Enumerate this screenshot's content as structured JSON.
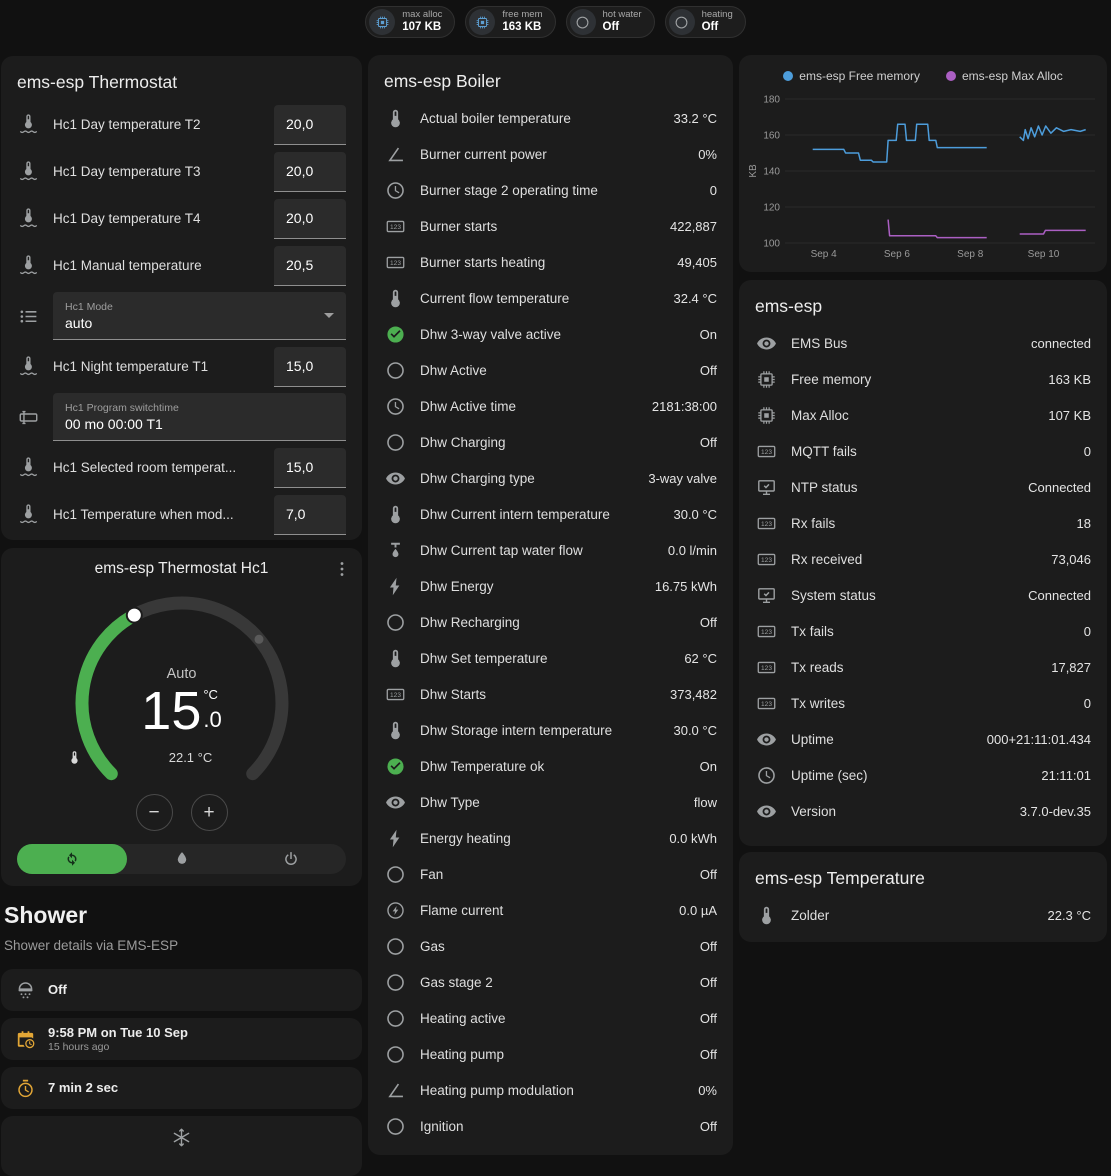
{
  "badges": [
    {
      "label": "max alloc",
      "value": "107 KB",
      "icon": "memory",
      "icon_color": "#5d9fd3"
    },
    {
      "label": "free mem",
      "value": "163 KB",
      "icon": "memory",
      "icon_color": "#5d9fd3"
    },
    {
      "label": "hot water",
      "value": "Off",
      "icon": "circle-outline",
      "icon_color": "#9da0a2"
    },
    {
      "label": "heating",
      "value": "Off",
      "icon": "circle-outline",
      "icon_color": "#9da0a2"
    }
  ],
  "thermostat_card": {
    "title": "ems-esp Thermostat",
    "rows": [
      {
        "type": "number",
        "icon": "thermometer-water",
        "label": "Hc1 Day temperature T2",
        "value": "20,0"
      },
      {
        "type": "number",
        "icon": "thermometer-water",
        "label": "Hc1 Day temperature T3",
        "value": "20,0"
      },
      {
        "type": "number",
        "icon": "thermometer-water",
        "label": "Hc1 Day temperature T4",
        "value": "20,0"
      },
      {
        "type": "number",
        "icon": "thermometer-water",
        "label": "Hc1 Manual temperature",
        "value": "20,5"
      },
      {
        "type": "select",
        "icon": "format-list",
        "label": "Hc1 Mode",
        "value": "auto"
      },
      {
        "type": "number",
        "icon": "thermometer-water",
        "label": "Hc1 Night temperature T1",
        "value": "15,0"
      },
      {
        "type": "text",
        "icon": "form-textbox",
        "label": "Hc1 Program switchtime",
        "value": "00 mo 00:00 T1"
      },
      {
        "type": "number",
        "icon": "thermometer-water",
        "label": "Hc1 Selected room temperat...",
        "value": "15,0"
      },
      {
        "type": "number",
        "icon": "thermometer-water",
        "label": "Hc1 Temperature when mod...",
        "value": "7,0"
      }
    ]
  },
  "hc1_card": {
    "title": "ems-esp Thermostat Hc1",
    "mode": "Auto",
    "temp_integer": "15",
    "temp_decimal": ".0",
    "temp_unit": "°C",
    "current_temperature": "22.1 °C",
    "decrease_label": "−",
    "increase_label": "+",
    "colors": {
      "arc_active": "#4caf50",
      "arc_inactive": "#383838",
      "handle": "#ffffff",
      "current_dot": "#5a5a5a",
      "active_mode_bg": "#4caf50"
    },
    "mode_buttons": [
      {
        "icon": "autorenew",
        "name": "auto-mode-button",
        "active": true
      },
      {
        "icon": "fire",
        "name": "heat-mode-button",
        "active": false
      },
      {
        "icon": "power",
        "name": "off-mode-button",
        "active": false
      }
    ]
  },
  "shower": {
    "title": "Shower",
    "subtitle": "Shower details via EMS-ESP",
    "rows": [
      {
        "icon": "shower",
        "icon_color": "#9da0a2",
        "text": "Off",
        "sub": ""
      },
      {
        "icon": "calendar-clock",
        "icon_color": "#e2a636",
        "text": "9:58 PM on Tue 10 Sep",
        "sub": "15 hours ago"
      },
      {
        "icon": "timer",
        "icon_color": "#e2a636",
        "text": "7 min 2 sec",
        "sub": ""
      },
      {
        "icon": "snowflake",
        "icon_color": "#9da0a2",
        "text": "",
        "sub": "",
        "center": true
      }
    ]
  },
  "boiler_card": {
    "title": "ems-esp Boiler",
    "rows": [
      {
        "icon": "thermometer",
        "label": "Actual boiler temperature",
        "value": "33.2 °C"
      },
      {
        "icon": "angle",
        "label": "Burner current power",
        "value": "0%"
      },
      {
        "icon": "clock",
        "label": "Burner stage 2 operating time",
        "value": "0"
      },
      {
        "icon": "counter",
        "label": "Burner starts",
        "value": "422,887"
      },
      {
        "icon": "counter",
        "label": "Burner starts heating",
        "value": "49,405"
      },
      {
        "icon": "thermometer",
        "label": "Current flow temperature",
        "value": "32.4 °C"
      },
      {
        "icon": "check-circle",
        "icon_color": "#4caf50",
        "label": "Dhw 3-way valve active",
        "value": "On"
      },
      {
        "icon": "circle-outline",
        "label": "Dhw Active",
        "value": "Off"
      },
      {
        "icon": "clock",
        "label": "Dhw Active time",
        "value": "2181:38:00"
      },
      {
        "icon": "circle-outline",
        "label": "Dhw Charging",
        "value": "Off"
      },
      {
        "icon": "eye",
        "label": "Dhw Charging type",
        "value": "3-way valve"
      },
      {
        "icon": "thermometer",
        "label": "Dhw Current intern temperature",
        "value": "30.0 °C"
      },
      {
        "icon": "water-pump",
        "label": "Dhw Current tap water flow",
        "value": "0.0 l/min"
      },
      {
        "icon": "flash",
        "label": "Dhw Energy",
        "value": "16.75 kWh"
      },
      {
        "icon": "circle-outline",
        "label": "Dhw Recharging",
        "value": "Off"
      },
      {
        "icon": "thermometer",
        "label": "Dhw Set temperature",
        "value": "62 °C"
      },
      {
        "icon": "counter",
        "label": "Dhw Starts",
        "value": "373,482"
      },
      {
        "icon": "thermometer",
        "label": "Dhw Storage intern temperature",
        "value": "30.0 °C"
      },
      {
        "icon": "check-circle",
        "icon_color": "#4caf50",
        "label": "Dhw Temperature ok",
        "value": "On"
      },
      {
        "icon": "eye",
        "label": "Dhw Type",
        "value": "flow"
      },
      {
        "icon": "flash",
        "label": "Energy heating",
        "value": "0.0 kWh"
      },
      {
        "icon": "circle-outline",
        "label": "Fan",
        "value": "Off"
      },
      {
        "icon": "flash-circle",
        "label": "Flame current",
        "value": "0.0 µA"
      },
      {
        "icon": "circle-outline",
        "label": "Gas",
        "value": "Off"
      },
      {
        "icon": "circle-outline",
        "label": "Gas stage 2",
        "value": "Off"
      },
      {
        "icon": "circle-outline",
        "label": "Heating active",
        "value": "Off"
      },
      {
        "icon": "circle-outline",
        "label": "Heating pump",
        "value": "Off"
      },
      {
        "icon": "angle",
        "label": "Heating pump modulation",
        "value": "0%"
      },
      {
        "icon": "circle-outline",
        "label": "Ignition",
        "value": "Off"
      }
    ]
  },
  "chart_card": {
    "legend": [
      {
        "label": "ems-esp Free memory",
        "color": "#4d9ddb"
      },
      {
        "label": "ems-esp Max Alloc",
        "color": "#ab5fc3"
      }
    ],
    "chart_data": {
      "type": "line",
      "title": "",
      "xlabel": "",
      "ylabel": "KB",
      "ylim": [
        100,
        180
      ],
      "yticks": [
        100,
        120,
        140,
        160,
        180
      ],
      "xlim": [
        3.0,
        11.35
      ],
      "xticks": [
        {
          "x": 4,
          "label": "Sep 4"
        },
        {
          "x": 6,
          "label": "Sep 6"
        },
        {
          "x": 8,
          "label": "Sep 8"
        },
        {
          "x": 10,
          "label": "Sep 10"
        }
      ],
      "grid": "horizontal",
      "legend_position": "top",
      "series": [
        {
          "name": "ems-esp Free memory",
          "color": "#4d9ddb",
          "unit": "KB",
          "segments": [
            [
              [
                3.7,
                152
              ],
              [
                4.55,
                152
              ],
              [
                4.6,
                150
              ],
              [
                4.95,
                150
              ],
              [
                5.0,
                146
              ],
              [
                5.3,
                146
              ],
              [
                5.35,
                145
              ],
              [
                5.72,
                145
              ],
              [
                5.76,
                157
              ],
              [
                5.98,
                157
              ],
              [
                6.02,
                166
              ],
              [
                6.22,
                166
              ],
              [
                6.26,
                157
              ],
              [
                6.5,
                157
              ],
              [
                6.54,
                166
              ],
              [
                6.84,
                166
              ],
              [
                6.88,
                157
              ],
              [
                7.06,
                157
              ],
              [
                7.1,
                153
              ],
              [
                8.45,
                153
              ]
            ],
            [
              [
                9.35,
                159
              ],
              [
                9.45,
                157
              ],
              [
                9.5,
                163
              ],
              [
                9.58,
                158
              ],
              [
                9.66,
                164
              ],
              [
                9.76,
                159
              ],
              [
                9.86,
                165
              ],
              [
                9.96,
                160
              ],
              [
                10.06,
                165
              ],
              [
                10.2,
                161
              ],
              [
                10.35,
                164
              ],
              [
                10.55,
                162
              ],
              [
                10.75,
                163
              ],
              [
                11.0,
                162
              ],
              [
                11.15,
                163
              ]
            ]
          ]
        },
        {
          "name": "ems-esp Max Alloc",
          "color": "#ab5fc3",
          "unit": "KB",
          "segments": [
            [
              [
                5.76,
                113
              ],
              [
                5.8,
                104
              ],
              [
                7.06,
                104
              ],
              [
                7.1,
                103
              ],
              [
                8.45,
                103
              ]
            ],
            [
              [
                9.35,
                105
              ],
              [
                10.0,
                105
              ],
              [
                10.05,
                107
              ],
              [
                11.15,
                107
              ]
            ]
          ]
        }
      ]
    }
  },
  "emsesp_card": {
    "title": "ems-esp",
    "rows": [
      {
        "icon": "eye",
        "label": "EMS Bus",
        "value": "connected"
      },
      {
        "icon": "memory",
        "label": "Free memory",
        "value": "163 KB"
      },
      {
        "icon": "memory",
        "label": "Max Alloc",
        "value": "107 KB"
      },
      {
        "icon": "counter",
        "label": "MQTT fails",
        "value": "0"
      },
      {
        "icon": "network-check",
        "label": "NTP status",
        "value": "Connected"
      },
      {
        "icon": "counter",
        "label": "Rx fails",
        "value": "18"
      },
      {
        "icon": "counter",
        "label": "Rx received",
        "value": "73,046"
      },
      {
        "icon": "network-check",
        "label": "System status",
        "value": "Connected"
      },
      {
        "icon": "counter",
        "label": "Tx fails",
        "value": "0"
      },
      {
        "icon": "counter",
        "label": "Tx reads",
        "value": "17,827"
      },
      {
        "icon": "counter",
        "label": "Tx writes",
        "value": "0"
      },
      {
        "icon": "eye",
        "label": "Uptime",
        "value": "000+21:11:01.434"
      },
      {
        "icon": "clock",
        "label": "Uptime (sec)",
        "value": "21:11:01"
      },
      {
        "icon": "eye",
        "label": "Version",
        "value": "3.7.0-dev.35"
      }
    ]
  },
  "temperature_card": {
    "title": "ems-esp Temperature",
    "rows": [
      {
        "icon": "thermometer",
        "label": "Zolder",
        "value": "22.3 °C"
      }
    ]
  }
}
